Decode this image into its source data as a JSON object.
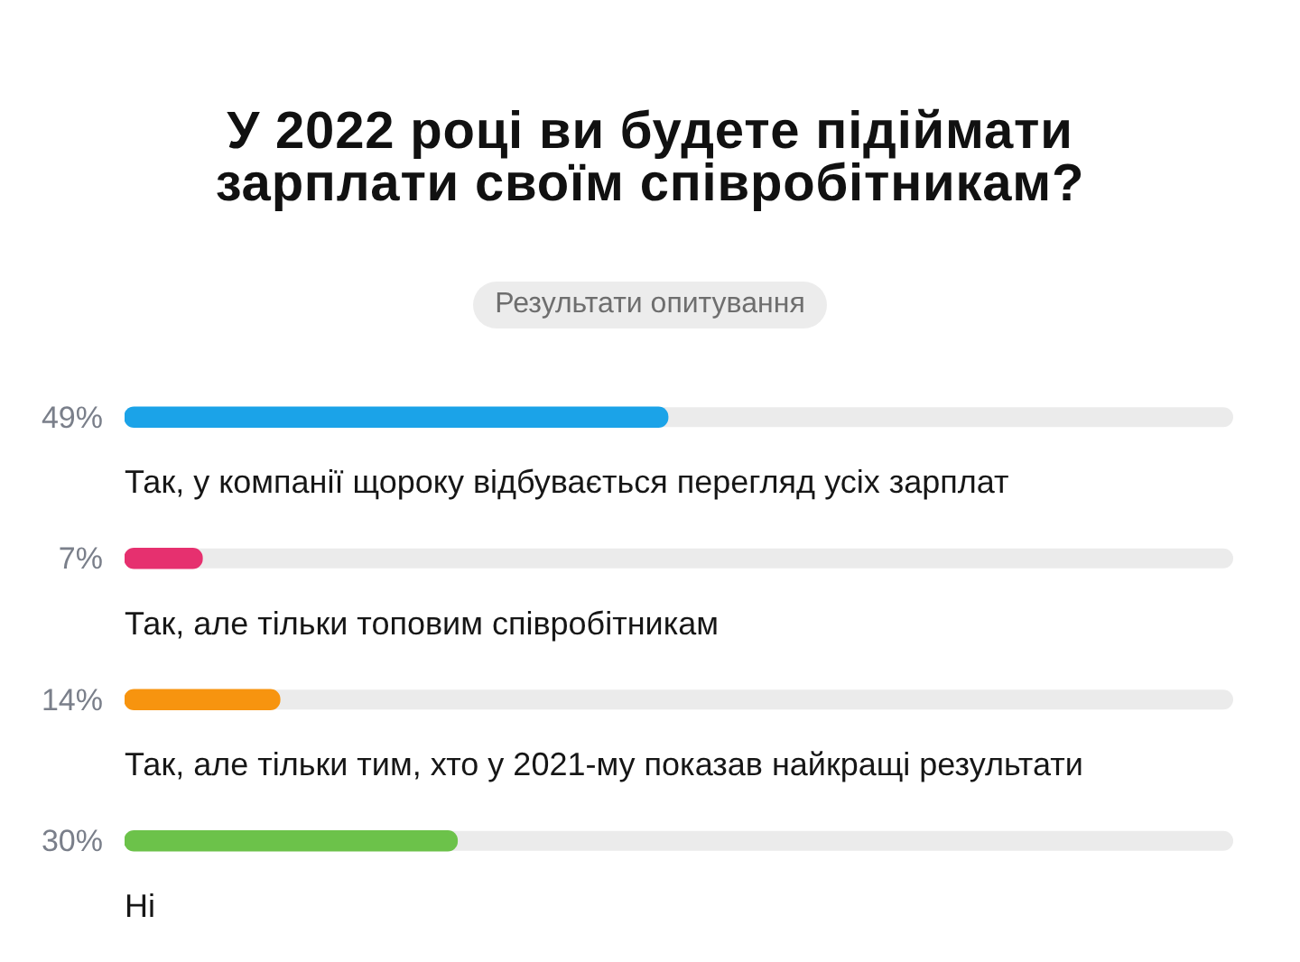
{
  "chart_data": {
    "type": "bar",
    "orientation": "horizontal",
    "title": "У 2022 році ви будете підіймати зарплати своїм співробітникам?",
    "subtitle": "Результати опитування",
    "categories": [
      "Так, у компанії щороку відбувається перегляд усіх зарплат",
      "Так, але тільки топовим співробітникам",
      "Так, але тільки тим, хто у 2021-му показав найкращі результати",
      "Ні"
    ],
    "values": [
      49,
      7,
      14,
      30
    ],
    "value_labels": [
      "49%",
      "7%",
      "14%",
      "30%"
    ],
    "colors": [
      "#1ba3e8",
      "#e6306f",
      "#f7940f",
      "#6cc24a"
    ],
    "xlim": [
      0,
      100
    ],
    "tick_labels": "y"
  }
}
